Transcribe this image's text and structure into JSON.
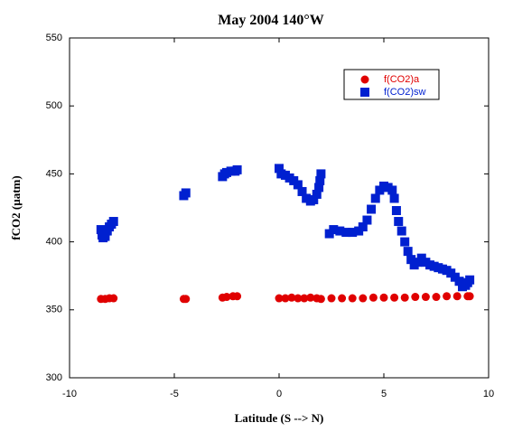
{
  "chart_data": {
    "type": "scatter",
    "title": "May 2004 140°W",
    "x_label": "Latitude (S --> N)",
    "y_label": "fCO2 (µatm)",
    "xlim": [
      -10,
      10
    ],
    "xticks": [
      -10,
      -5,
      0,
      5,
      10
    ],
    "ylim": [
      300,
      550
    ],
    "yticks": [
      300,
      350,
      400,
      450,
      500,
      550
    ],
    "legend": "upper right",
    "series": [
      {
        "name": "f(CO2)a",
        "color": "#e00000",
        "marker": "circle",
        "x": [
          -8.5,
          -8.3,
          -8.1,
          -7.9,
          -4.55,
          -4.45,
          -2.7,
          -2.5,
          -2.2,
          -2.0,
          0.0,
          0.3,
          0.6,
          0.9,
          1.2,
          1.5,
          1.8,
          2.0,
          2.5,
          3.0,
          3.5,
          4.0,
          4.5,
          5.0,
          5.5,
          6.0,
          6.5,
          7.0,
          7.5,
          8.0,
          8.5,
          9.0,
          9.1
        ],
        "values": [
          358,
          358,
          358.5,
          358.5,
          358,
          358,
          359,
          359.5,
          360,
          360,
          358.5,
          358.5,
          359,
          358.5,
          358.5,
          359,
          358.5,
          358,
          358.5,
          358.5,
          358.5,
          358.5,
          359,
          359,
          359,
          359,
          359.5,
          359.5,
          359.5,
          360,
          360,
          360,
          360
        ]
      },
      {
        "name": "f(CO2)sw",
        "color": "#0020d0",
        "marker": "square",
        "x": [
          -8.5,
          -8.45,
          -8.4,
          -8.3,
          -8.2,
          -8.1,
          -8.0,
          -7.9,
          -4.55,
          -4.45,
          -2.7,
          -2.6,
          -2.5,
          -2.3,
          -2.1,
          -2.0,
          0.0,
          0.1,
          0.3,
          0.5,
          0.7,
          0.9,
          1.1,
          1.3,
          1.5,
          1.65,
          1.8,
          1.9,
          1.95,
          2.0,
          2.4,
          2.6,
          2.9,
          3.2,
          3.5,
          3.8,
          4.0,
          4.2,
          4.4,
          4.6,
          4.8,
          5.0,
          5.2,
          5.4,
          5.5,
          5.6,
          5.7,
          5.85,
          6.0,
          6.15,
          6.3,
          6.45,
          6.6,
          6.8,
          7.0,
          7.2,
          7.4,
          7.6,
          7.8,
          8.0,
          8.2,
          8.4,
          8.6,
          8.75,
          8.9,
          9.0,
          9.1
        ],
        "values": [
          409,
          405,
          403,
          404,
          408,
          411,
          413,
          415,
          434,
          436,
          448,
          450,
          451,
          452,
          452,
          453,
          454,
          450,
          449,
          447,
          445,
          442,
          437,
          432,
          430,
          431,
          435,
          440,
          445,
          450,
          406,
          409,
          408,
          407,
          407,
          408,
          411,
          416,
          424,
          432,
          438,
          441,
          440,
          438,
          432,
          423,
          415,
          408,
          400,
          393,
          387,
          383,
          385,
          388,
          385,
          383,
          382,
          381,
          380,
          379,
          377,
          374,
          371,
          367,
          368,
          370,
          372
        ]
      }
    ]
  }
}
